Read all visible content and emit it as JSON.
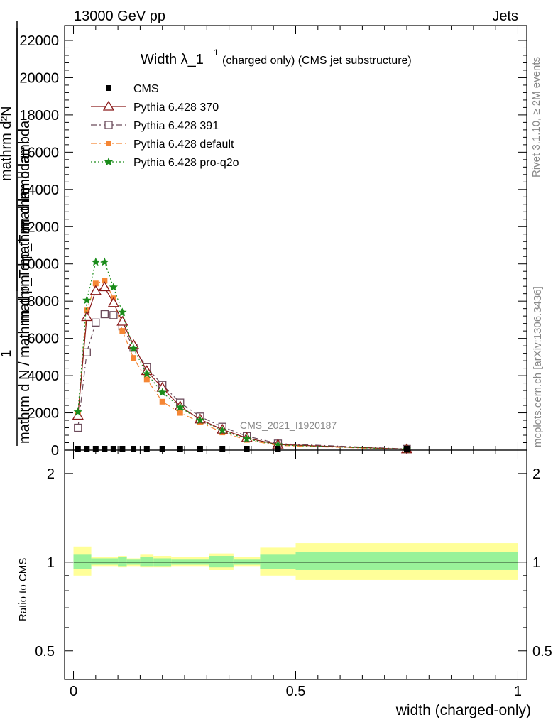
{
  "header": {
    "left": "13000 GeV pp",
    "right": "Jets"
  },
  "side": {
    "rivet": "Rivet 3.1.10, ≥ 2M events",
    "mcplots": "mcplots.cern.ch [arXiv:1306.3436]"
  },
  "watermark": "CMS_2021_I1920187",
  "colors": {
    "cms": "#000000",
    "p370": "#8b1a1a",
    "p391": "#6b4a5a",
    "pdef": "#f58634",
    "pq2o": "#1a8c1a",
    "band_inner": "#99f299",
    "band_outer": "#ffff99"
  },
  "chart_data": [
    {
      "type": "line",
      "title_main": "Width λ_1",
      "title_sup": "1",
      "title_rest": "(charged only) (CMS jet substructure)",
      "ylabel_num": "1",
      "ylabel_den": "mathrm d N / mathrm d p_T mathrm d lambda",
      "ylabel_num2": "mathrm d²N",
      "ylabel_den2": "mathrm d p_T mathrm d lambda",
      "ylabel_T": "T",
      "xlim": [
        -0.02,
        1.02
      ],
      "ylim": [
        0,
        22800
      ],
      "yticks": [
        0,
        2000,
        4000,
        6000,
        8000,
        10000,
        12000,
        14000,
        16000,
        18000,
        20000,
        22000
      ],
      "ytick_labels": [
        "0",
        "2000",
        "4000",
        "6000",
        "8000",
        "10000",
        "12000",
        "14000",
        "16000",
        "18000",
        "20000",
        "22000"
      ],
      "legend_position": "top-left",
      "series": [
        {
          "name": "CMS",
          "style": "data",
          "x": [
            0.01,
            0.03,
            0.05,
            0.07,
            0.09,
            0.11,
            0.135,
            0.165,
            0.2,
            0.24,
            0.285,
            0.335,
            0.39,
            0.46,
            0.75
          ],
          "y": [
            0,
            0,
            0,
            0,
            0,
            0,
            0,
            0,
            0,
            0,
            0,
            0,
            0,
            0,
            0
          ]
        },
        {
          "name": "Pythia 6.428 370",
          "style": "solid",
          "x": [
            0.01,
            0.03,
            0.05,
            0.07,
            0.09,
            0.11,
            0.135,
            0.165,
            0.2,
            0.24,
            0.285,
            0.335,
            0.39,
            0.46,
            0.75
          ],
          "y": [
            1850,
            7150,
            8550,
            8750,
            7900,
            6900,
            5650,
            4250,
            3350,
            2350,
            1650,
            1100,
            650,
            300,
            50
          ]
        },
        {
          "name": "Pythia 6.428 391",
          "style": "dashdot",
          "x": [
            0.01,
            0.03,
            0.05,
            0.07,
            0.09,
            0.11,
            0.135,
            0.165,
            0.2,
            0.24,
            0.285,
            0.335,
            0.39,
            0.46,
            0.75
          ],
          "y": [
            1200,
            5250,
            6850,
            7300,
            7250,
            6650,
            5500,
            4450,
            3500,
            2550,
            1800,
            1250,
            750,
            350,
            60
          ]
        },
        {
          "name": "Pythia 6.428 default",
          "style": "dashdot2",
          "x": [
            0.01,
            0.03,
            0.05,
            0.07,
            0.09,
            0.11,
            0.135,
            0.165,
            0.2,
            0.24,
            0.285,
            0.335,
            0.39,
            0.46,
            0.75
          ],
          "y": [
            1900,
            7500,
            8950,
            9100,
            8150,
            6400,
            4950,
            3800,
            2600,
            2000,
            1500,
            950,
            550,
            250,
            40
          ]
        },
        {
          "name": "Pythia 6.428 pro-q2o",
          "style": "dotted",
          "x": [
            0.01,
            0.03,
            0.05,
            0.07,
            0.09,
            0.11,
            0.135,
            0.165,
            0.2,
            0.24,
            0.285,
            0.335,
            0.39,
            0.46,
            0.75
          ],
          "y": [
            2050,
            8050,
            10100,
            10100,
            8750,
            7400,
            5450,
            4100,
            3100,
            2300,
            1600,
            1050,
            600,
            280,
            45
          ]
        }
      ]
    },
    {
      "type": "area",
      "ylabel": "Ratio to CMS",
      "xlabel": "width (charged-only)",
      "xlim": [
        -0.02,
        1.02
      ],
      "ylim": [
        0.4,
        2.4
      ],
      "log_y": true,
      "yticks": [
        0.5,
        1,
        2
      ],
      "ytick_labels": [
        "0.5",
        "1",
        "2"
      ],
      "xticks": [
        0,
        0.5,
        1
      ],
      "xtick_labels": [
        "0",
        "0.5",
        "1"
      ],
      "bins": [
        {
          "lo": 0.0,
          "hi": 0.04,
          "inner": [
            0.95,
            1.06
          ],
          "outer": [
            0.9,
            1.13
          ]
        },
        {
          "lo": 0.04,
          "hi": 0.1,
          "inner": [
            0.98,
            1.03
          ],
          "outer": [
            0.97,
            1.04
          ]
        },
        {
          "lo": 0.1,
          "hi": 0.12,
          "inner": [
            0.97,
            1.04
          ],
          "outer": [
            0.96,
            1.05
          ]
        },
        {
          "lo": 0.12,
          "hi": 0.15,
          "inner": [
            0.98,
            1.02
          ],
          "outer": [
            0.97,
            1.03
          ]
        },
        {
          "lo": 0.15,
          "hi": 0.18,
          "inner": [
            0.97,
            1.04
          ],
          "outer": [
            0.96,
            1.06
          ]
        },
        {
          "lo": 0.18,
          "hi": 0.22,
          "inner": [
            0.97,
            1.03
          ],
          "outer": [
            0.96,
            1.05
          ]
        },
        {
          "lo": 0.22,
          "hi": 0.305,
          "inner": [
            0.98,
            1.02
          ],
          "outer": [
            0.97,
            1.04
          ]
        },
        {
          "lo": 0.305,
          "hi": 0.36,
          "inner": [
            0.96,
            1.05
          ],
          "outer": [
            0.94,
            1.07
          ]
        },
        {
          "lo": 0.36,
          "hi": 0.42,
          "inner": [
            0.98,
            1.02
          ],
          "outer": [
            0.97,
            1.04
          ]
        },
        {
          "lo": 0.42,
          "hi": 0.5,
          "inner": [
            0.95,
            1.06
          ],
          "outer": [
            0.9,
            1.12
          ]
        },
        {
          "lo": 0.5,
          "hi": 1.0,
          "inner": [
            0.94,
            1.08
          ],
          "outer": [
            0.87,
            1.16
          ]
        }
      ]
    }
  ]
}
